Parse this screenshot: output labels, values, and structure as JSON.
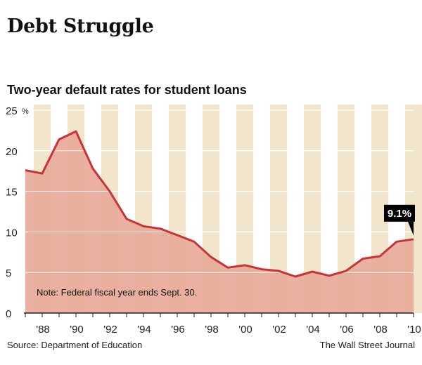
{
  "header": {
    "title": "Debt Struggle",
    "subtitle": "Two-year default rates for student loans"
  },
  "footer": {
    "source": "Source: Department of Education",
    "credit": "The Wall Street Journal"
  },
  "colors": {
    "line": "#c8323a",
    "area": "#e8a898",
    "band": "#f1e6cc",
    "axis": "#222222",
    "callout_bg": "#000000"
  },
  "chart_data": {
    "type": "area",
    "title": "Two-year default rates for student loans",
    "ylabel": "%",
    "ylim": [
      0,
      25
    ],
    "y_ticks": [
      0,
      5,
      10,
      15,
      20,
      25
    ],
    "y_top_unit": "%",
    "xlim": [
      1987,
      2010
    ],
    "x_tick_years": [
      1988,
      1990,
      1992,
      1994,
      1996,
      1998,
      2000,
      2002,
      2004,
      2006,
      2008,
      2010
    ],
    "x_tick_labels": [
      "'88",
      "'90",
      "'92",
      "'94",
      "'96",
      "'98",
      "'00",
      "'02",
      "'04",
      "'06",
      "'08",
      "'10"
    ],
    "alternating_bands": true,
    "grid": "horizontal",
    "series": [
      {
        "x": [
          1987,
          1988,
          1989,
          1990,
          1991,
          1992,
          1993,
          1994,
          1995,
          1996,
          1997,
          1998,
          1999,
          2000,
          2001,
          2002,
          2003,
          2004,
          2005,
          2006,
          2007,
          2008,
          2009,
          2010
        ],
        "values": [
          17.6,
          17.2,
          21.4,
          22.4,
          17.8,
          15.0,
          11.6,
          10.7,
          10.4,
          9.6,
          8.8,
          6.9,
          5.6,
          5.9,
          5.4,
          5.2,
          4.5,
          5.1,
          4.6,
          5.2,
          6.7,
          7.0,
          8.8,
          9.1
        ]
      }
    ],
    "annotations": {
      "note": "Note: Federal fiscal year ends Sept. 30.",
      "callout": "9.1%"
    }
  }
}
